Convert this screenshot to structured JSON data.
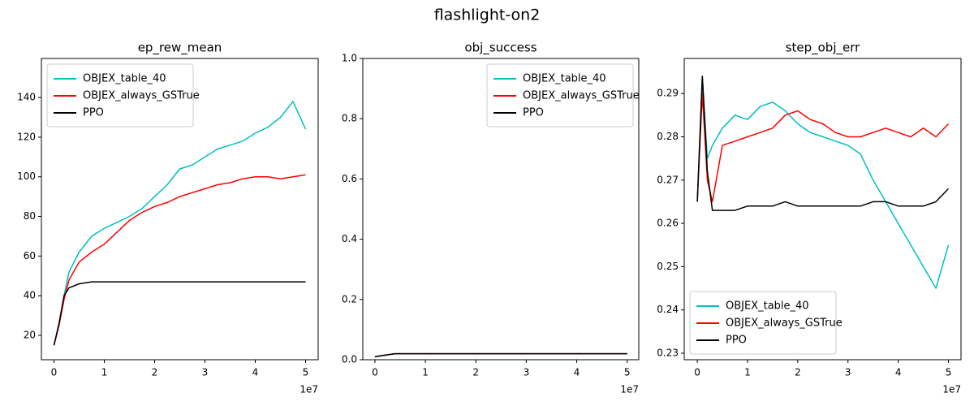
{
  "title": "flashlight-on2",
  "chart_data": [
    {
      "type": "line",
      "title": "ep_rew_mean",
      "legend": "upper left",
      "x_offset_label": "1e7",
      "x": [
        0,
        0.1,
        0.2,
        0.3,
        0.5,
        0.75,
        1,
        1.25,
        1.5,
        1.75,
        2,
        2.25,
        2.5,
        2.75,
        3,
        3.25,
        3.5,
        3.75,
        4,
        4.25,
        4.5,
        4.75,
        5
      ],
      "series": [
        {
          "name": "OBJEX_table_40",
          "color": "#00bfbf",
          "values": [
            15,
            25,
            40,
            52,
            62,
            70,
            74,
            77,
            80,
            84,
            90,
            96,
            104,
            106,
            110,
            114,
            116,
            118,
            122,
            125,
            130,
            138,
            124
          ]
        },
        {
          "name": "OBJEX_always_GSTrue",
          "color": "#ff0000",
          "values": [
            15,
            25,
            38,
            48,
            57,
            62,
            66,
            72,
            78,
            82,
            85,
            87,
            90,
            92,
            94,
            96,
            97,
            99,
            100,
            100,
            99,
            100,
            101
          ]
        },
        {
          "name": "PPO",
          "color": "#000000",
          "values": [
            15,
            26,
            40,
            44,
            46,
            47,
            47,
            47,
            47,
            47,
            47,
            47,
            47,
            47,
            47,
            47,
            47,
            47,
            47,
            47,
            47,
            47,
            47
          ]
        }
      ],
      "xlim": [
        -0.25,
        5.25
      ],
      "ylim": [
        7.7,
        159.7
      ],
      "xticks": [
        0,
        1,
        2,
        3,
        4,
        5
      ],
      "yticks": [
        20,
        40,
        60,
        80,
        100,
        120,
        140
      ]
    },
    {
      "type": "line",
      "title": "obj_success",
      "legend": "upper right",
      "x_offset_label": "1e7",
      "x": [
        0,
        0.2,
        0.4,
        1,
        2,
        3,
        4,
        5
      ],
      "series": [
        {
          "name": "OBJEX_table_40",
          "color": "#00bfbf",
          "values": [
            0.01,
            0.015,
            0.02,
            0.02,
            0.02,
            0.02,
            0.02,
            0.02
          ]
        },
        {
          "name": "OBJEX_always_GSTrue",
          "color": "#ff0000",
          "values": [
            0.01,
            0.015,
            0.02,
            0.02,
            0.02,
            0.02,
            0.02,
            0.02
          ]
        },
        {
          "name": "PPO",
          "color": "#000000",
          "values": [
            0.01,
            0.015,
            0.02,
            0.02,
            0.02,
            0.02,
            0.02,
            0.02
          ]
        }
      ],
      "xlim": [
        -0.24,
        5.23
      ],
      "ylim": [
        0,
        1
      ],
      "xticks": [
        0,
        1,
        2,
        3,
        4,
        5
      ],
      "yticks": [
        {
          "value": 0,
          "label": "0.0"
        },
        0.2,
        0.4,
        0.6,
        0.8,
        {
          "value": 1,
          "label": "1.0"
        }
      ]
    },
    {
      "type": "line",
      "title": "step_obj_err",
      "legend": "lower left",
      "x_offset_label": "1e7",
      "x": [
        0,
        0.1,
        0.2,
        0.3,
        0.5,
        0.75,
        1,
        1.25,
        1.5,
        1.75,
        2,
        2.25,
        2.5,
        2.75,
        3,
        3.25,
        3.5,
        3.75,
        4,
        4.25,
        4.5,
        4.75,
        5
      ],
      "series": [
        {
          "name": "OBJEX_table_40",
          "color": "#00bfbf",
          "values": [
            0.265,
            0.294,
            0.275,
            0.278,
            0.282,
            0.285,
            0.284,
            0.287,
            0.288,
            0.286,
            0.283,
            0.281,
            0.28,
            0.279,
            0.278,
            0.276,
            0.27,
            0.265,
            0.26,
            0.255,
            0.25,
            0.245,
            0.255
          ]
        },
        {
          "name": "OBJEX_always_GSTrue",
          "color": "#ff0000",
          "values": [
            0.265,
            0.29,
            0.27,
            0.265,
            0.278,
            0.279,
            0.28,
            0.281,
            0.282,
            0.285,
            0.286,
            0.284,
            0.283,
            0.281,
            0.28,
            0.28,
            0.281,
            0.282,
            0.281,
            0.28,
            0.282,
            0.28,
            0.283
          ]
        },
        {
          "name": "PPO",
          "color": "#000000",
          "values": [
            0.265,
            0.294,
            0.272,
            0.263,
            0.263,
            0.263,
            0.264,
            0.264,
            0.264,
            0.265,
            0.264,
            0.264,
            0.264,
            0.264,
            0.264,
            0.264,
            0.265,
            0.265,
            0.264,
            0.264,
            0.264,
            0.265,
            0.268
          ]
        }
      ],
      "xlim": [
        -0.26,
        5.25
      ],
      "ylim": [
        0.2285,
        0.2981
      ],
      "xticks": [
        0,
        1,
        2,
        3,
        4,
        5
      ],
      "yticks": [
        0.23,
        0.24,
        0.25,
        0.26,
        0.27,
        0.28,
        0.29
      ]
    }
  ]
}
